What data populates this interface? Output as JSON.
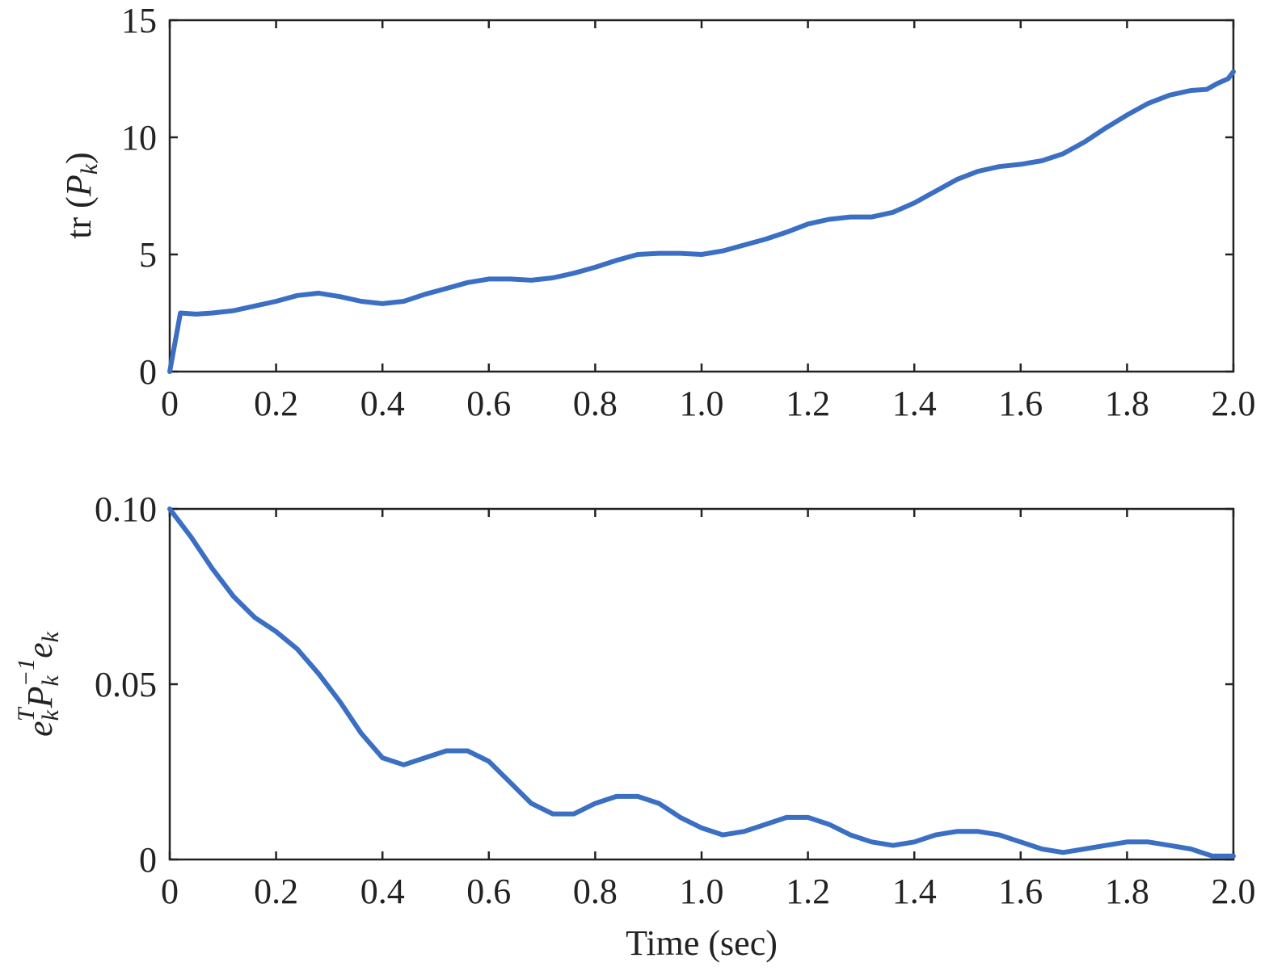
{
  "chart_data": [
    {
      "type": "line",
      "xlabel": "",
      "ylabel_parts": [
        "tr (",
        "P",
        "k",
        ")"
      ],
      "xlim": [
        0,
        2.0
      ],
      "ylim": [
        0,
        15
      ],
      "x_ticks": [
        "0",
        "0.2",
        "0.4",
        "0.6",
        "0.8",
        "1.0",
        "1.2",
        "1.4",
        "1.6",
        "1.8",
        "2.0"
      ],
      "x_tick_values": [
        0,
        0.2,
        0.4,
        0.6,
        0.8,
        1.0,
        1.2,
        1.4,
        1.6,
        1.8,
        2.0
      ],
      "y_ticks": [
        "0",
        "5",
        "10",
        "15"
      ],
      "y_tick_values": [
        0,
        5,
        10,
        15
      ],
      "grid": false,
      "series": [
        {
          "color": "#3a6fc4",
          "x": [
            0,
            0.02,
            0.05,
            0.08,
            0.12,
            0.16,
            0.2,
            0.24,
            0.28,
            0.32,
            0.36,
            0.4,
            0.44,
            0.48,
            0.52,
            0.56,
            0.6,
            0.64,
            0.68,
            0.72,
            0.76,
            0.8,
            0.84,
            0.88,
            0.92,
            0.96,
            1.0,
            1.04,
            1.08,
            1.12,
            1.16,
            1.2,
            1.24,
            1.28,
            1.32,
            1.36,
            1.4,
            1.44,
            1.48,
            1.52,
            1.56,
            1.6,
            1.64,
            1.68,
            1.72,
            1.76,
            1.8,
            1.84,
            1.88,
            1.92,
            1.95,
            1.97,
            1.99,
            2.0
          ],
          "y": [
            0,
            2.5,
            2.45,
            2.5,
            2.6,
            2.8,
            3.0,
            3.25,
            3.35,
            3.2,
            3.0,
            2.9,
            3.0,
            3.3,
            3.55,
            3.8,
            3.95,
            3.95,
            3.9,
            4.0,
            4.2,
            4.45,
            4.75,
            5.0,
            5.05,
            5.05,
            5.0,
            5.15,
            5.4,
            5.65,
            5.95,
            6.3,
            6.5,
            6.6,
            6.6,
            6.8,
            7.2,
            7.7,
            8.2,
            8.55,
            8.75,
            8.85,
            9.0,
            9.3,
            9.8,
            10.4,
            10.95,
            11.45,
            11.8,
            12.0,
            12.05,
            12.3,
            12.5,
            12.8
          ]
        }
      ]
    },
    {
      "type": "line",
      "xlabel": "Time (sec)",
      "ylabel_parts": [
        "e",
        "k",
        "T",
        "P",
        "k",
        "−1",
        "e",
        "k"
      ],
      "xlim": [
        0,
        2.0
      ],
      "ylim": [
        0,
        0.1
      ],
      "x_ticks": [
        "0",
        "0.2",
        "0.4",
        "0.6",
        "0.8",
        "1.0",
        "1.2",
        "1.4",
        "1.6",
        "1.8",
        "2.0"
      ],
      "x_tick_values": [
        0,
        0.2,
        0.4,
        0.6,
        0.8,
        1.0,
        1.2,
        1.4,
        1.6,
        1.8,
        2.0
      ],
      "y_ticks": [
        "0",
        "0.05",
        "0.10"
      ],
      "y_tick_values": [
        0,
        0.05,
        0.1
      ],
      "grid": false,
      "series": [
        {
          "color": "#3a6fc4",
          "x": [
            0,
            0.04,
            0.08,
            0.12,
            0.16,
            0.2,
            0.24,
            0.28,
            0.32,
            0.36,
            0.4,
            0.44,
            0.48,
            0.52,
            0.56,
            0.6,
            0.64,
            0.68,
            0.72,
            0.76,
            0.8,
            0.84,
            0.88,
            0.92,
            0.96,
            1.0,
            1.04,
            1.08,
            1.12,
            1.16,
            1.2,
            1.24,
            1.28,
            1.32,
            1.36,
            1.4,
            1.44,
            1.48,
            1.52,
            1.56,
            1.6,
            1.64,
            1.68,
            1.72,
            1.76,
            1.8,
            1.84,
            1.88,
            1.92,
            1.96,
            2.0
          ],
          "y": [
            0.1,
            0.092,
            0.083,
            0.075,
            0.069,
            0.065,
            0.06,
            0.053,
            0.045,
            0.036,
            0.029,
            0.027,
            0.029,
            0.031,
            0.031,
            0.028,
            0.022,
            0.016,
            0.013,
            0.013,
            0.016,
            0.018,
            0.018,
            0.016,
            0.012,
            0.009,
            0.007,
            0.008,
            0.01,
            0.012,
            0.012,
            0.01,
            0.007,
            0.005,
            0.004,
            0.005,
            0.007,
            0.008,
            0.008,
            0.007,
            0.005,
            0.003,
            0.002,
            0.003,
            0.004,
            0.005,
            0.005,
            0.004,
            0.003,
            0.001,
            0.001
          ]
        }
      ]
    }
  ]
}
